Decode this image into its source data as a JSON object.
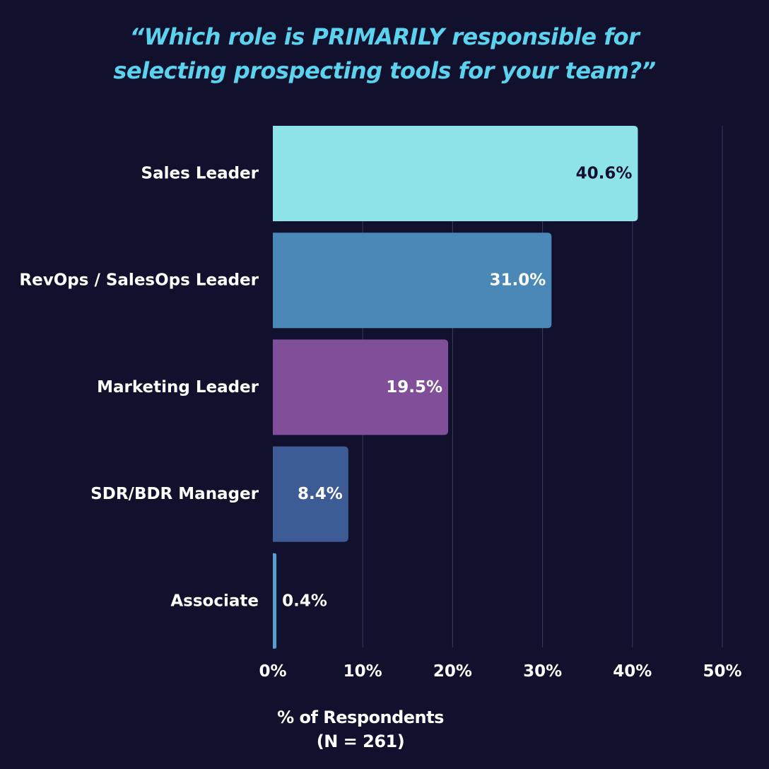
{
  "chart_data": {
    "type": "bar",
    "orientation": "horizontal",
    "title": [
      "“Which role is PRIMARILY responsible for",
      "selecting prospecting tools for your team?”"
    ],
    "xlabel": [
      "% of Respondents",
      "(N = 261)"
    ],
    "ylabel": "",
    "categories": [
      "Sales Leader",
      "RevOps / SalesOps Leader",
      "Marketing Leader",
      "SDR/BDR Manager",
      "Associate"
    ],
    "values": [
      40.6,
      31.0,
      19.5,
      8.4,
      0.4
    ],
    "value_labels": [
      "40.6%",
      "31.0%",
      "19.5%",
      "8.4%",
      "0.4%"
    ],
    "bar_colors": [
      "#8ee3e8",
      "#4a88b7",
      "#814f99",
      "#3d5c95",
      "#5a9ed0"
    ],
    "value_label_colors": [
      "#11112e",
      "#ffffff",
      "#ffffff",
      "#ffffff",
      "#ffffff"
    ],
    "xlim": [
      0,
      50
    ],
    "xticks": [
      0,
      10,
      20,
      30,
      40,
      50
    ],
    "xtick_labels": [
      "0%",
      "10%",
      "20%",
      "30%",
      "40%",
      "50%"
    ],
    "grid": "vertical",
    "legend": "none"
  },
  "colors": {
    "background": "#11112e",
    "title": "#5cd3ee",
    "text": "#ffffff",
    "grid": "#3a3a5a"
  }
}
